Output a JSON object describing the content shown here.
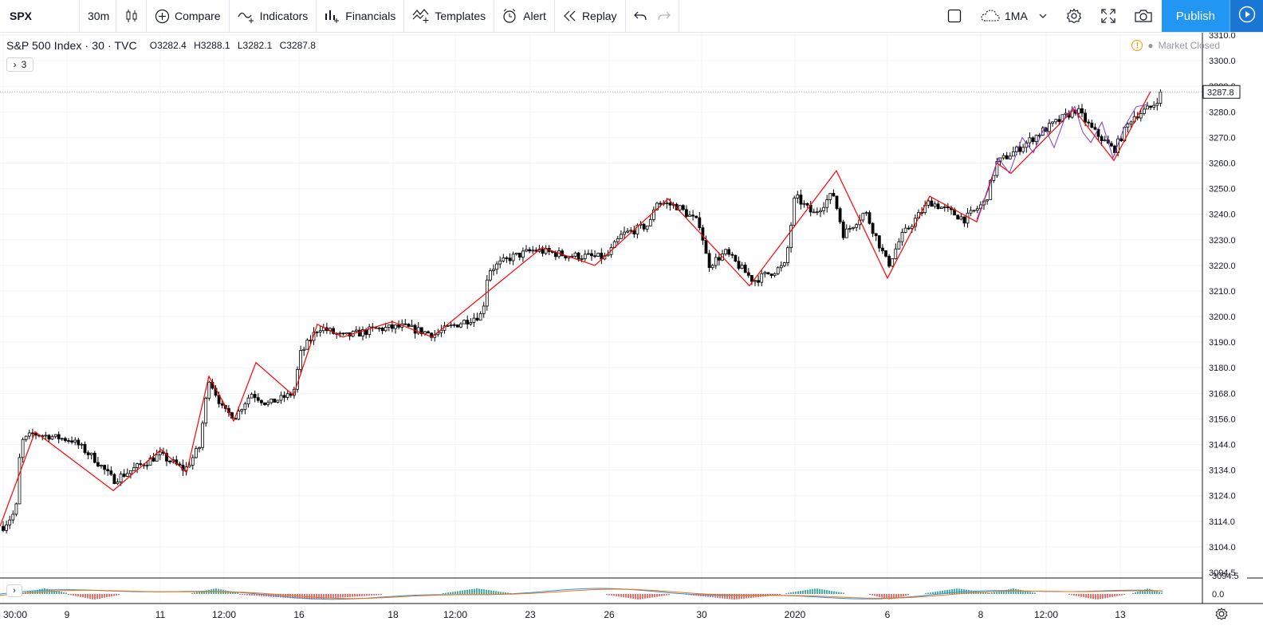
{
  "toolbar": {
    "symbol": "SPX",
    "interval": "30m",
    "compare": "Compare",
    "indicators": "Indicators",
    "financials": "Financials",
    "templates": "Templates",
    "alert": "Alert",
    "replay": "Replay",
    "layout": "1MA",
    "publish": "Publish"
  },
  "legend": {
    "name": "S&P 500 Index · 30 · TVC",
    "open": "O3282.4",
    "high": "H3288.1",
    "low": "L3282.1",
    "close": "C3287.8",
    "indicators_count": "3"
  },
  "market_status": "Market Closed",
  "colors": {
    "zigzag": "#ff0000",
    "purple_zigzag": "#7e3fc6",
    "macd_line": "#2196f3",
    "signal_line": "#ff6d00",
    "hist_up": "#26a69a",
    "hist_down": "#ef5350",
    "candle": "#000000",
    "grid": "#f0f3fa",
    "accent": "#2196f3"
  },
  "chart_data": {
    "type": "line",
    "title": "S&P 500 Index · 30 · TVC",
    "ylim": [
      3090,
      3312
    ],
    "y_ticks": [
      3310.0,
      3300.0,
      3290.0,
      3280.0,
      3270.0,
      3260.0,
      3250.0,
      3240.0,
      3230.0,
      3220.0,
      3210.0,
      3200.0,
      3190.0,
      3180.0,
      3168.0,
      3156.0,
      3144.0,
      3134.0,
      3124.0,
      3114.0,
      3104.0,
      3094.5
    ],
    "x_tick_labels": [
      "30:00",
      "9",
      "11",
      "12:00",
      "16",
      "18",
      "12:00",
      "23",
      "26",
      "30",
      "2020",
      "6",
      "8",
      "12:00",
      "13"
    ],
    "last_price": "3287.8",
    "grid": true,
    "series": [
      {
        "name": "",
        "type": "zigzag",
        "points": [
          [
            0,
            3112
          ],
          [
            44,
            3150
          ],
          [
            142,
            3126
          ],
          [
            202,
            3142
          ],
          [
            234,
            3133
          ],
          [
            262,
            3176
          ],
          [
            293,
            3155
          ],
          [
            321,
            3182
          ],
          [
            368,
            3167
          ],
          [
            398,
            3197
          ],
          [
            430,
            3192
          ],
          [
            492,
            3198
          ],
          [
            542,
            3192
          ],
          [
            680,
            3227
          ],
          [
            746,
            3220
          ],
          [
            838,
            3246
          ],
          [
            940,
            3212
          ],
          [
            1049,
            3257
          ],
          [
            1113,
            3215
          ],
          [
            1166,
            3247
          ],
          [
            1225,
            3237
          ],
          [
            1250,
            3260
          ],
          [
            1268,
            3256
          ],
          [
            1347,
            3281
          ],
          [
            1397,
            3261
          ],
          [
            1443,
            3288
          ]
        ]
      },
      {
        "name": "",
        "type": "candlestick",
        "close_path": [
          [
            4,
            3112
          ],
          [
            20,
            3118
          ],
          [
            26,
            3145
          ],
          [
            40,
            3149
          ],
          [
            60,
            3148
          ],
          [
            90,
            3146
          ],
          [
            120,
            3138
          ],
          [
            142,
            3130
          ],
          [
            165,
            3134
          ],
          [
            200,
            3140
          ],
          [
            232,
            3134
          ],
          [
            250,
            3143
          ],
          [
            262,
            3175
          ],
          [
            280,
            3160
          ],
          [
            295,
            3157
          ],
          [
            315,
            3168
          ],
          [
            335,
            3163
          ],
          [
            368,
            3168
          ],
          [
            376,
            3185
          ],
          [
            400,
            3196
          ],
          [
            430,
            3192
          ],
          [
            470,
            3195
          ],
          [
            505,
            3196
          ],
          [
            545,
            3193
          ],
          [
            565,
            3196
          ],
          [
            605,
            3201
          ],
          [
            612,
            3218
          ],
          [
            640,
            3223
          ],
          [
            670,
            3226
          ],
          [
            710,
            3224
          ],
          [
            760,
            3223
          ],
          [
            780,
            3232
          ],
          [
            815,
            3236
          ],
          [
            822,
            3245
          ],
          [
            850,
            3243
          ],
          [
            878,
            3236
          ],
          [
            888,
            3220
          ],
          [
            910,
            3225
          ],
          [
            945,
            3214
          ],
          [
            985,
            3220
          ],
          [
            997,
            3247
          ],
          [
            1020,
            3240
          ],
          [
            1045,
            3248
          ],
          [
            1058,
            3232
          ],
          [
            1085,
            3241
          ],
          [
            1114,
            3220
          ],
          [
            1130,
            3231
          ],
          [
            1166,
            3245
          ],
          [
            1210,
            3238
          ],
          [
            1236,
            3245
          ],
          [
            1250,
            3260
          ],
          [
            1275,
            3265
          ],
          [
            1305,
            3272
          ],
          [
            1350,
            3281
          ],
          [
            1370,
            3273
          ],
          [
            1397,
            3265
          ],
          [
            1420,
            3278
          ],
          [
            1445,
            3282
          ],
          [
            1458,
            3288
          ]
        ]
      },
      {
        "name": "",
        "type": "histogram",
        "segments": [
          [
            25,
            85,
            "up"
          ],
          [
            85,
            150,
            "down"
          ],
          [
            240,
            300,
            "up"
          ],
          [
            300,
            480,
            "down"
          ],
          [
            555,
            640,
            "up"
          ],
          [
            760,
            840,
            "down"
          ],
          [
            860,
            980,
            "down"
          ],
          [
            985,
            1060,
            "up"
          ],
          [
            1090,
            1140,
            "down"
          ],
          [
            1160,
            1240,
            "up"
          ],
          [
            1240,
            1300,
            "up"
          ],
          [
            1340,
            1410,
            "down"
          ],
          [
            1420,
            1458,
            "up"
          ]
        ]
      }
    ]
  }
}
